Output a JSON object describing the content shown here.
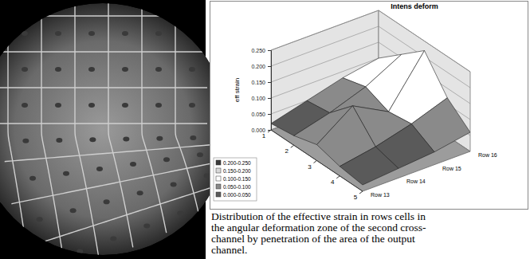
{
  "chart_data": {
    "type": "surface",
    "title": "Intens deform",
    "y_label": "eff strain",
    "x": [
      1,
      2,
      3,
      4,
      5
    ],
    "xlim": [
      1,
      5
    ],
    "xticks": [
      1,
      2,
      3,
      4,
      5
    ],
    "series": [
      {
        "name": "Row 13",
        "values": [
          0.02,
          0.03,
          0.05,
          0.03,
          0.02
        ]
      },
      {
        "name": "Row 14",
        "values": [
          0.05,
          0.06,
          0.13,
          0.05,
          0.03
        ]
      },
      {
        "name": "Row 15",
        "values": [
          0.08,
          0.1,
          0.07,
          0.08,
          0.04
        ]
      },
      {
        "name": "Row 16",
        "values": [
          0.1,
          0.16,
          0.22,
          0.12,
          0.06
        ]
      }
    ],
    "ylim": [
      0,
      0.25
    ],
    "yticks": [
      {
        "value": 0,
        "label": "0.000"
      },
      {
        "value": 0.05,
        "label": "0.050"
      },
      {
        "value": 0.1,
        "label": "0.100"
      },
      {
        "value": 0.15,
        "label": "0.150"
      },
      {
        "value": 0.2,
        "label": "0.200"
      },
      {
        "value": 0.25,
        "label": "0.250"
      }
    ],
    "levels": [
      {
        "from": 0.2,
        "to": 0.25,
        "label": "0.200-0.250",
        "color": "#3a3a3a"
      },
      {
        "from": 0.15,
        "to": 0.2,
        "label": "0.150-0.200",
        "color": "#d8d8d8"
      },
      {
        "from": 0.1,
        "to": 0.15,
        "label": "0.100-0.150",
        "color": "#ffffff"
      },
      {
        "from": 0.05,
        "to": 0.1,
        "label": "0.050-0.100",
        "color": "#8a8a8a"
      },
      {
        "from": 0,
        "to": 0.05,
        "label": "0.000-0.050",
        "color": "#5a5a5a"
      }
    ],
    "grid": true,
    "legend": "bottom-left"
  },
  "caption": [
    "Distribution of the effective strain in rows cells in",
    "the angular deformation zone of the second cross-",
    "channel by penetration of the area of the output",
    "channel."
  ]
}
